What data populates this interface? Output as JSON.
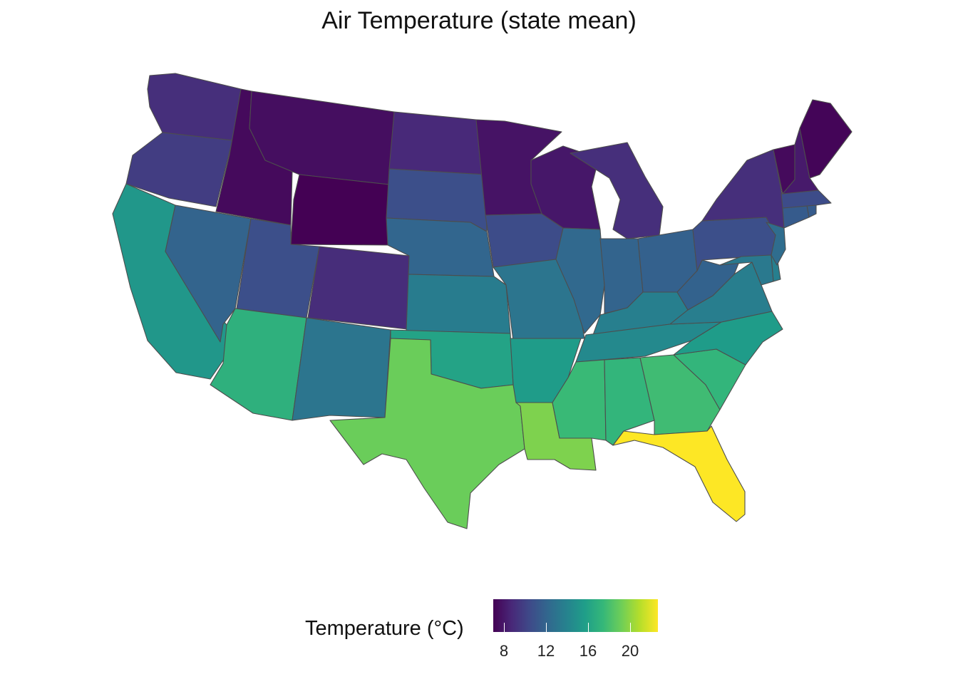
{
  "title": "Air Temperature (state mean)",
  "legend": {
    "title": "Temperature (°C)",
    "ticks": [
      "8",
      "12",
      "16",
      "20"
    ],
    "colormap": "viridis",
    "range_c": [
      7.2,
      22.9
    ]
  },
  "states": [
    {
      "id": "WA",
      "temp_c": 9.3
    },
    {
      "id": "OR",
      "temp_c": 10.0
    },
    {
      "id": "CA",
      "temp_c": 15.5
    },
    {
      "id": "ID",
      "temp_c": 7.6
    },
    {
      "id": "NV",
      "temp_c": 12.2
    },
    {
      "id": "MT",
      "temp_c": 7.8
    },
    {
      "id": "WY",
      "temp_c": 7.2
    },
    {
      "id": "UT",
      "temp_c": 11.0
    },
    {
      "id": "CO",
      "temp_c": 9.2
    },
    {
      "id": "AZ",
      "temp_c": 17.2
    },
    {
      "id": "NM",
      "temp_c": 13.3
    },
    {
      "id": "ND",
      "temp_c": 9.0
    },
    {
      "id": "SD",
      "temp_c": 11.0
    },
    {
      "id": "NE",
      "temp_c": 12.3
    },
    {
      "id": "KS",
      "temp_c": 13.8
    },
    {
      "id": "OK",
      "temp_c": 16.3
    },
    {
      "id": "TX",
      "temp_c": 19.3
    },
    {
      "id": "MN",
      "temp_c": 8.0
    },
    {
      "id": "IA",
      "temp_c": 10.8
    },
    {
      "id": "MO",
      "temp_c": 13.3
    },
    {
      "id": "AR",
      "temp_c": 15.8
    },
    {
      "id": "LA",
      "temp_c": 19.8
    },
    {
      "id": "WI",
      "temp_c": 8.2
    },
    {
      "id": "IL",
      "temp_c": 12.5
    },
    {
      "id": "MI",
      "temp_c": 9.3
    },
    {
      "id": "IN",
      "temp_c": 12.2
    },
    {
      "id": "OH",
      "temp_c": 12.0
    },
    {
      "id": "KY",
      "temp_c": 14.0
    },
    {
      "id": "TN",
      "temp_c": 14.6
    },
    {
      "id": "MS",
      "temp_c": 17.8
    },
    {
      "id": "AL",
      "temp_c": 17.5
    },
    {
      "id": "GA",
      "temp_c": 18.0
    },
    {
      "id": "FL",
      "temp_c": 22.9
    },
    {
      "id": "SC",
      "temp_c": 17.5
    },
    {
      "id": "NC",
      "temp_c": 15.8
    },
    {
      "id": "VA",
      "temp_c": 13.9
    },
    {
      "id": "WV",
      "temp_c": 12.1
    },
    {
      "id": "PA",
      "temp_c": 11.0
    },
    {
      "id": "NY",
      "temp_c": 9.3
    },
    {
      "id": "MD",
      "temp_c": 13.6
    },
    {
      "id": "DE",
      "temp_c": 14.0
    },
    {
      "id": "NJ",
      "temp_c": 12.8
    },
    {
      "id": "CT",
      "temp_c": 11.7
    },
    {
      "id": "RI",
      "temp_c": 11.7
    },
    {
      "id": "MA",
      "temp_c": 10.8
    },
    {
      "id": "VT",
      "temp_c": 7.6
    },
    {
      "id": "NH",
      "temp_c": 8.3
    },
    {
      "id": "ME",
      "temp_c": 7.4
    }
  ]
}
